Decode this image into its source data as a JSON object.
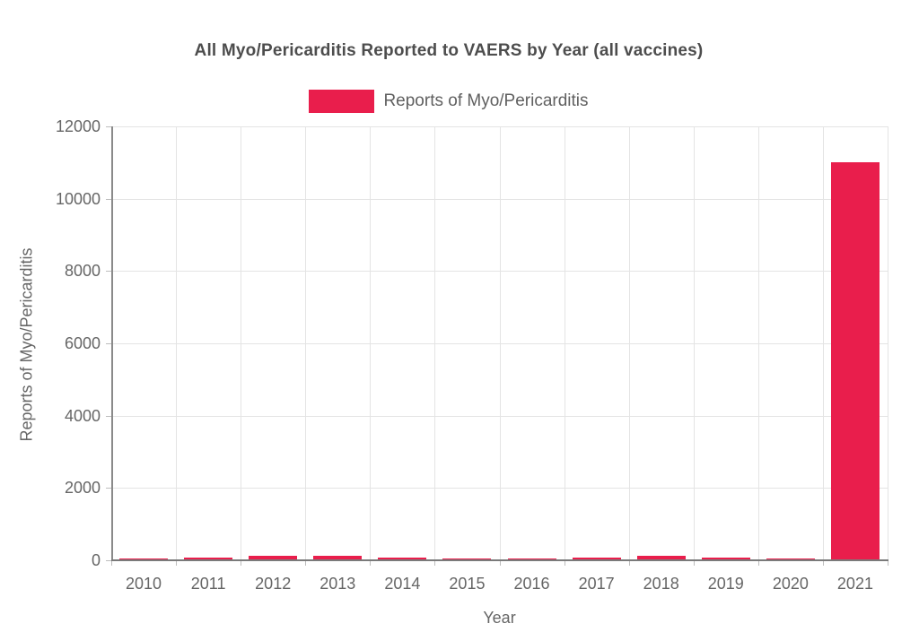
{
  "title": "All Myo/Pericarditis Reported to VAERS by Year (all vaccines)",
  "legend": {
    "swatch_icon": "series-color-swatch",
    "label": "Reports of Myo/Pericarditis"
  },
  "axes": {
    "x_title": "Year",
    "y_title": "Reports of Myo/Pericarditis"
  },
  "colors": {
    "bar": "#e91e4c",
    "title_text": "#4d4d4d",
    "axis_text": "#666666",
    "grid": "#e4e4e4",
    "axis_line": "#8a8a8a"
  },
  "chart_data": {
    "type": "bar",
    "title": "All Myo/Pericarditis Reported to VAERS by Year (all vaccines)",
    "xlabel": "Year",
    "ylabel": "Reports of Myo/Pericarditis",
    "categories": [
      "2010",
      "2011",
      "2012",
      "2013",
      "2014",
      "2015",
      "2016",
      "2017",
      "2018",
      "2019",
      "2020",
      "2021"
    ],
    "values": [
      60,
      72,
      120,
      115,
      72,
      40,
      50,
      65,
      120,
      65,
      50,
      11000
    ],
    "series_name": "Reports of Myo/Pericarditis",
    "ylim": [
      0,
      12000
    ],
    "yticks": [
      0,
      2000,
      4000,
      6000,
      8000,
      10000,
      12000
    ],
    "grid": true,
    "legend_position": "top-center",
    "bar_color": "#e91e4c"
  }
}
